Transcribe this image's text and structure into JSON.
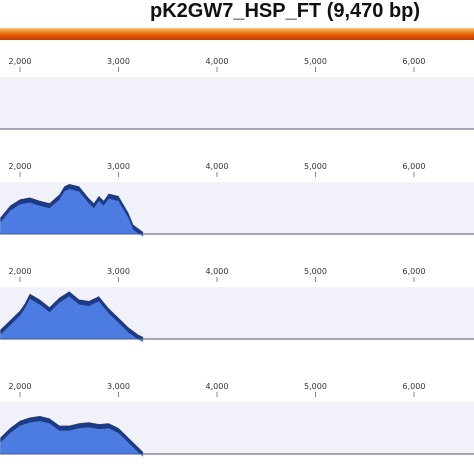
{
  "title": "pK2GW7_HSP_FT (9,470 bp)",
  "colors": {
    "sequence_bar": "#e2550a",
    "track_background": "#f1f1fa",
    "coverage_fill": "#4f7ee6",
    "coverage_outline": "#1a3a8a",
    "baseline": "#555566"
  },
  "chart_data": [
    {
      "type": "area",
      "tick_labels": [
        "2,000",
        "3,000",
        "4,000",
        "5,000",
        "6,000"
      ],
      "x": [],
      "y": []
    },
    {
      "type": "area",
      "tick_labels": [
        "2,000",
        "3,000",
        "4,000",
        "5,000",
        "6,000"
      ],
      "x": [
        1800,
        1900,
        2000,
        2100,
        2200,
        2300,
        2400,
        2450,
        2500,
        2600,
        2700,
        2750,
        2800,
        2850,
        2900,
        3000,
        3100,
        3150,
        3250
      ],
      "y": [
        0.3,
        0.55,
        0.68,
        0.72,
        0.65,
        0.6,
        0.78,
        0.95,
        1.0,
        0.95,
        0.7,
        0.6,
        0.75,
        0.65,
        0.8,
        0.75,
        0.4,
        0.15,
        0.0
      ]
    },
    {
      "type": "area",
      "tick_labels": [
        "2,000",
        "3,000",
        "4,000",
        "5,000",
        "6,000"
      ],
      "x": [
        1800,
        1900,
        2000,
        2050,
        2100,
        2200,
        2300,
        2400,
        2500,
        2600,
        2700,
        2800,
        2900,
        3000,
        3100,
        3200,
        3250
      ],
      "y": [
        0.15,
        0.35,
        0.55,
        0.7,
        0.9,
        0.78,
        0.62,
        0.82,
        0.95,
        0.78,
        0.75,
        0.85,
        0.6,
        0.4,
        0.2,
        0.05,
        0.0
      ]
    },
    {
      "type": "area",
      "tick_labels": [
        "2,000",
        "3,000",
        "4,000",
        "5,000",
        "6,000"
      ],
      "x": [
        1800,
        1900,
        2000,
        2100,
        2200,
        2300,
        2400,
        2500,
        2600,
        2700,
        2800,
        2900,
        3000,
        3100,
        3200,
        3250
      ],
      "y": [
        0.3,
        0.5,
        0.65,
        0.72,
        0.75,
        0.7,
        0.55,
        0.55,
        0.6,
        0.62,
        0.58,
        0.6,
        0.5,
        0.3,
        0.1,
        0.0
      ]
    }
  ]
}
